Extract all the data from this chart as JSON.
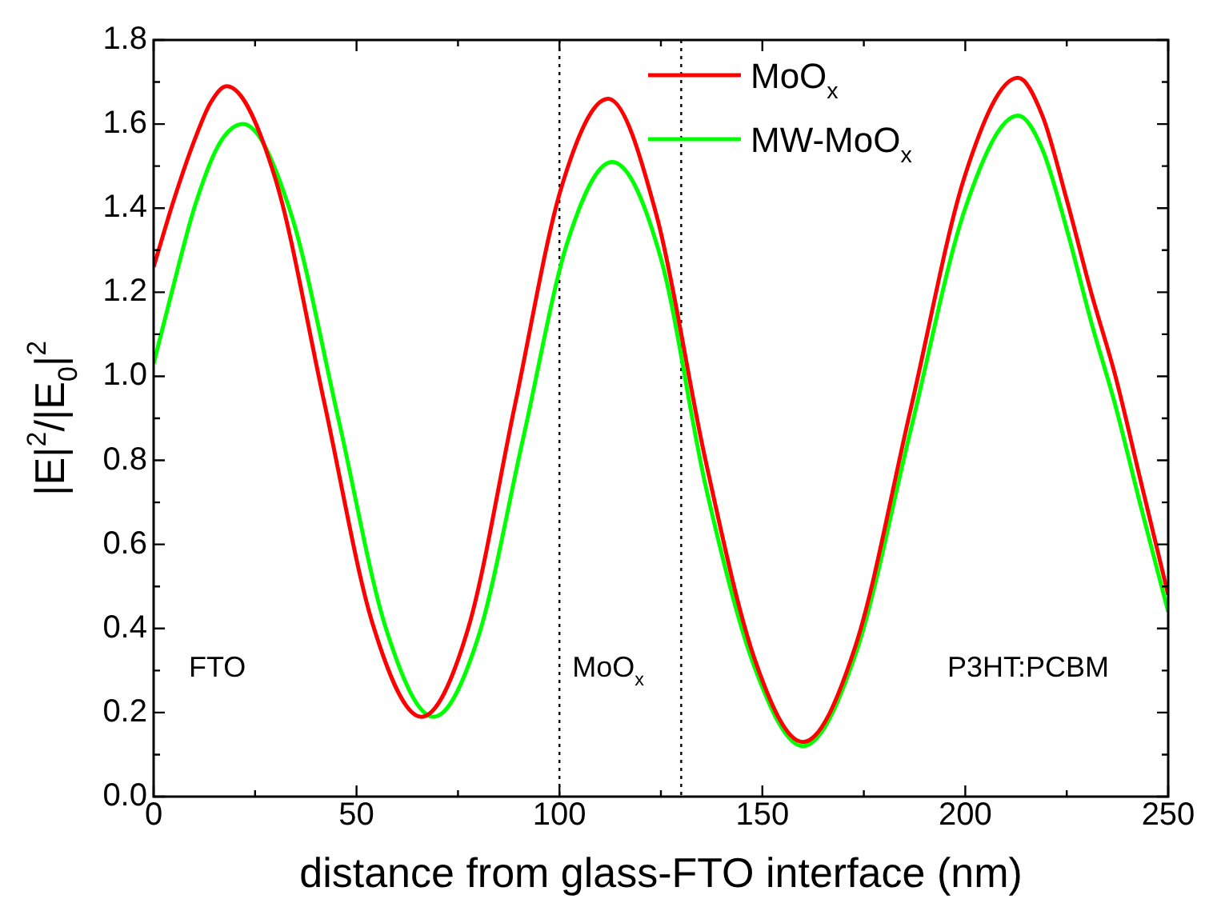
{
  "chart_data": {
    "type": "line",
    "xlabel": "distance from glass-FTO interface (nm)",
    "ylabel": "|E|$^{2}$/|E$_{0}$|$^{2}$",
    "xlim": [
      0,
      250
    ],
    "xticks": [
      0,
      50,
      100,
      150,
      200,
      250
    ],
    "ylim": [
      0,
      1.8
    ],
    "yticks": [
      {
        "value": 0,
        "label": "0.0"
      },
      {
        "value": 0.2,
        "label": "0.2"
      },
      {
        "value": 0.4,
        "label": "0.4"
      },
      {
        "value": 0.6,
        "label": "0.6"
      },
      {
        "value": 0.8,
        "label": "0.8"
      },
      {
        "value": 1.0,
        "label": "1.0"
      },
      {
        "value": 1.2,
        "label": "1.2"
      },
      {
        "value": 1.4,
        "label": "1.4"
      },
      {
        "value": 1.6,
        "label": "1.6"
      },
      {
        "value": 1.8,
        "label": "1.8"
      }
    ],
    "grid": false,
    "legend": "top right",
    "marker": "none",
    "line_style": "solid",
    "series": [
      {
        "name": "MoO$_{x}$",
        "color": "#ff0000",
        "x": [
          0,
          5,
          10,
          14,
          18,
          30,
          42,
          54,
          66,
          77.5,
          89,
          100.5,
          112,
          124,
          136,
          148,
          160,
          173,
          186.5,
          200,
          213,
          219,
          225,
          231,
          237,
          243,
          250
        ],
        "values": [
          1.26,
          1.42,
          1.56,
          1.65,
          1.69,
          1.47,
          0.94,
          0.41,
          0.19,
          0.4,
          0.93,
          1.45,
          1.66,
          1.38,
          0.8,
          0.33,
          0.13,
          0.36,
          0.92,
          1.48,
          1.71,
          1.62,
          1.42,
          1.2,
          1.0,
          0.76,
          0.48
        ]
      },
      {
        "name": "MW-MoO$_{x}$",
        "color": "#00ff00",
        "x": [
          0,
          5,
          10,
          16,
          22,
          33.75,
          45.5,
          57.25,
          69,
          80,
          91,
          102,
          113,
          125,
          136,
          148,
          160,
          173,
          186.5,
          200,
          213,
          219,
          225,
          231,
          237,
          243,
          250
        ],
        "values": [
          1.03,
          1.22,
          1.4,
          1.55,
          1.6,
          1.39,
          0.9,
          0.4,
          0.19,
          0.38,
          0.85,
          1.32,
          1.51,
          1.28,
          0.74,
          0.31,
          0.12,
          0.34,
          0.87,
          1.4,
          1.62,
          1.54,
          1.35,
          1.13,
          0.93,
          0.7,
          0.44
        ]
      }
    ],
    "ref_lines": [
      {
        "axis": "x",
        "value": 100,
        "color": "#000000",
        "line_style": "dotted"
      },
      {
        "axis": "x",
        "value": 130,
        "color": "#000000",
        "line_style": "dotted"
      }
    ],
    "annotations": [
      "FTO",
      "MoO$_{x}$",
      "P3HT:PCBM"
    ]
  }
}
